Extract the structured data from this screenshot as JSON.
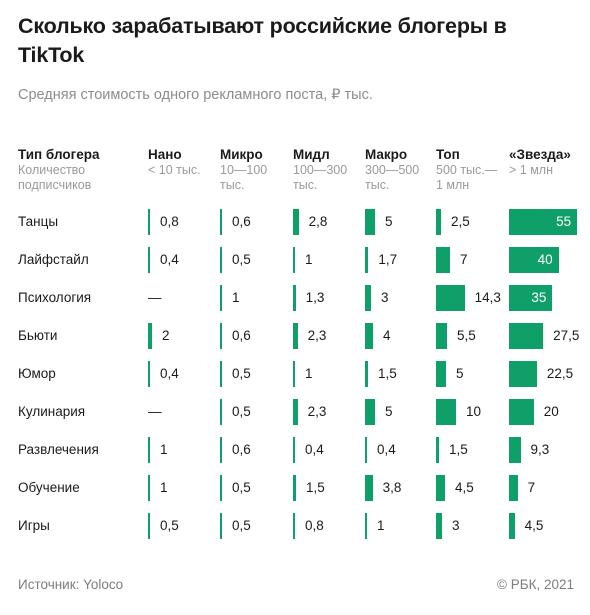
{
  "title": "Сколько зарабатывают российские блогеры в TikTok",
  "subtitle": "Средняя стоимость одного рекламного поста, ₽ тыс.",
  "header": {
    "type_label": "Тип блогера",
    "type_sub1": "Количество",
    "type_sub2": "подписчиков"
  },
  "columns": [
    {
      "name": "Нано",
      "sub1": "< 10 тыс.",
      "sub2": ""
    },
    {
      "name": "Микро",
      "sub1": "10—100",
      "sub2": "тыс."
    },
    {
      "name": "Мидл",
      "sub1": "100—300",
      "sub2": "тыс."
    },
    {
      "name": "Макро",
      "sub1": "300—500",
      "sub2": "тыс."
    },
    {
      "name": "Топ",
      "sub1": "500 тыс.—",
      "sub2": "1 млн"
    },
    {
      "name": "«Звезда»",
      "sub1": "> 1 млн",
      "sub2": ""
    }
  ],
  "chart_data": {
    "type": "table",
    "unit": "₽ тыс.",
    "columns": [
      "Нано",
      "Микро",
      "Мидл",
      "Макро",
      "Топ",
      "«Звезда»"
    ],
    "rows": [
      {
        "label": "Танцы",
        "values": [
          "0,8",
          "0,6",
          "2,8",
          "5",
          "2,5",
          "55"
        ]
      },
      {
        "label": "Лайфстайл",
        "values": [
          "0,4",
          "0,5",
          "1",
          "1,7",
          "7",
          "40"
        ]
      },
      {
        "label": "Психология",
        "values": [
          "—",
          "1",
          "1,3",
          "3",
          "14,3",
          "35"
        ]
      },
      {
        "label": "Бьюти",
        "values": [
          "2",
          "0,6",
          "2,3",
          "4",
          "5,5",
          "27,5"
        ]
      },
      {
        "label": "Юмор",
        "values": [
          "0,4",
          "0,5",
          "1",
          "1,5",
          "5",
          "22,5"
        ]
      },
      {
        "label": "Кулинария",
        "values": [
          "—",
          "0,5",
          "2,3",
          "5",
          "10",
          "20"
        ]
      },
      {
        "label": "Развлечения",
        "values": [
          "1",
          "0,6",
          "0,4",
          "0,4",
          "1,5",
          "9,3"
        ]
      },
      {
        "label": "Обучение",
        "values": [
          "1",
          "0,5",
          "1,5",
          "3,8",
          "4,5",
          "7"
        ]
      },
      {
        "label": "Игры",
        "values": [
          "0,5",
          "0,5",
          "0,8",
          "1",
          "3",
          "4,5"
        ]
      }
    ]
  },
  "colors": {
    "bar": "#0f9f68"
  },
  "footer": {
    "source": "Источник:  Yoloco",
    "copyright": "©  РБК, 2021"
  }
}
